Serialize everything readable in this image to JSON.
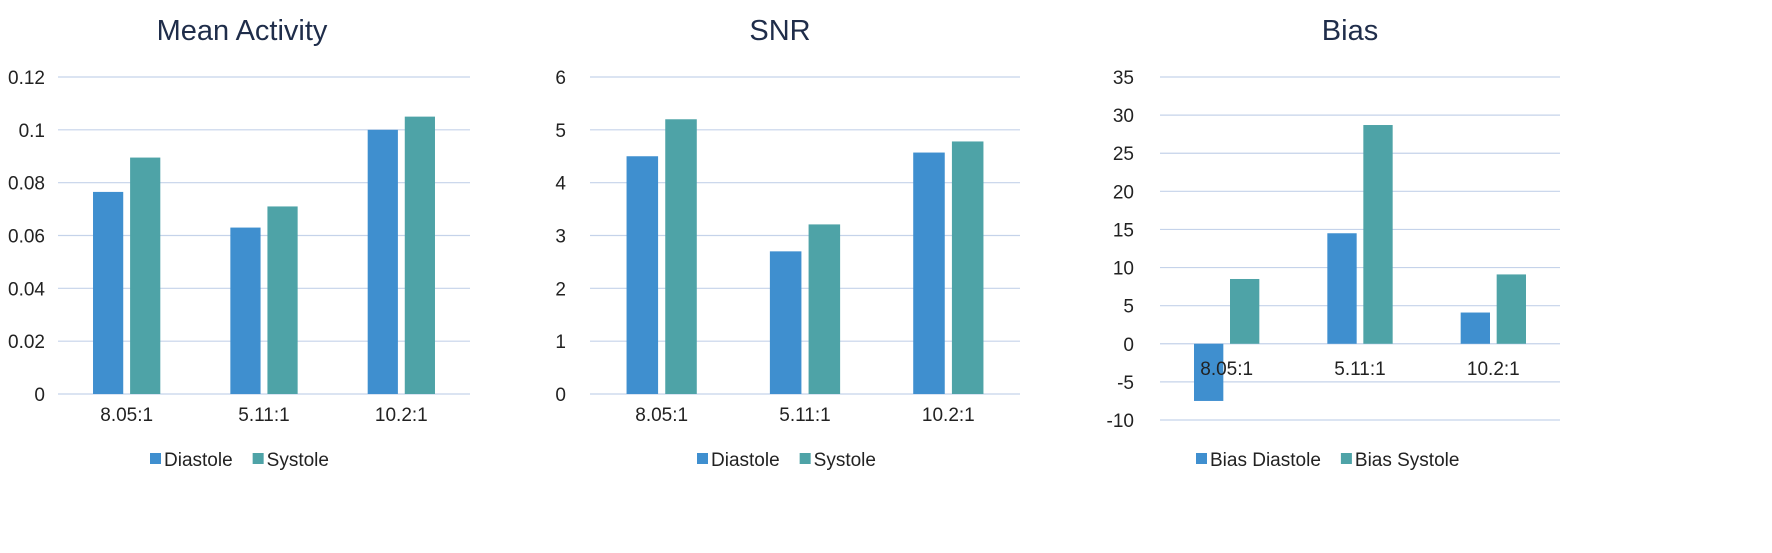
{
  "colors": {
    "series_1": "#3f8fcf",
    "series_2": "#4ea3a7",
    "grid": "#c5d3ea",
    "text": "#222222",
    "title": "#1f2d4a"
  },
  "chart_data": [
    {
      "type": "bar",
      "title": "Mean Activity",
      "categories": [
        "8.05:1",
        "5.11:1",
        "10.2:1"
      ],
      "series": [
        {
          "name": "Diastole",
          "values": [
            0.0765,
            0.063,
            0.1
          ]
        },
        {
          "name": "Systole",
          "values": [
            0.0895,
            0.071,
            0.105
          ]
        }
      ],
      "ylim": [
        0,
        0.12
      ],
      "yticks": [
        "0",
        "0.02",
        "0.04",
        "0.06",
        "0.08",
        "0.1",
        "0.12"
      ],
      "ytick_values": [
        0,
        0.02,
        0.04,
        0.06,
        0.08,
        0.1,
        0.12
      ],
      "grid": true,
      "legend": "bottom"
    },
    {
      "type": "bar",
      "title": "SNR",
      "categories": [
        "8.05:1",
        "5.11:1",
        "10.2:1"
      ],
      "series": [
        {
          "name": "Diastole",
          "values": [
            4.5,
            2.7,
            4.57
          ]
        },
        {
          "name": "Systole",
          "values": [
            5.2,
            3.21,
            4.78
          ]
        }
      ],
      "ylim": [
        0,
        6
      ],
      "yticks": [
        "0",
        "1",
        "2",
        "3",
        "4",
        "5",
        "6"
      ],
      "ytick_values": [
        0,
        1,
        2,
        3,
        4,
        5,
        6
      ],
      "grid": true,
      "legend": "bottom"
    },
    {
      "type": "bar",
      "title": "Bias",
      "categories": [
        "8.05:1",
        "5.11:1",
        "10.2:1"
      ],
      "series": [
        {
          "name": "Bias Diastole",
          "values": [
            -7.5,
            14.5,
            4.1
          ]
        },
        {
          "name": "Bias Systole",
          "values": [
            8.5,
            28.7,
            9.1
          ]
        }
      ],
      "ylim": [
        -10,
        35
      ],
      "yticks": [
        "-10",
        "-5",
        "0",
        "5",
        "10",
        "15",
        "20",
        "25",
        "30",
        "35"
      ],
      "ytick_values": [
        -10,
        -5,
        0,
        5,
        10,
        15,
        20,
        25,
        30,
        35
      ],
      "grid": true,
      "legend": "bottom"
    }
  ]
}
